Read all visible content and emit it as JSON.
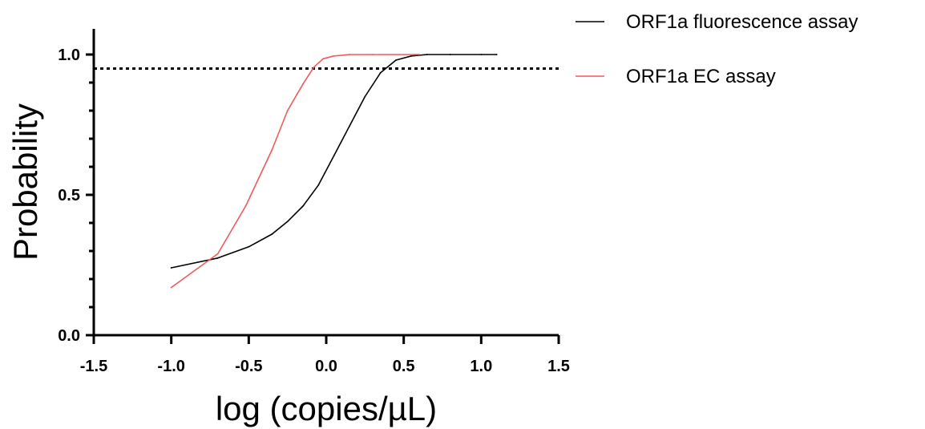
{
  "chart_data": {
    "type": "line",
    "title": "",
    "xlabel": "log (copies/µL)",
    "ylabel": "Probability",
    "xlim": [
      -1.5,
      1.5
    ],
    "ylim": [
      0.0,
      1.0
    ],
    "x_ticks": [
      -1.5,
      -1.0,
      -0.5,
      0.0,
      0.5,
      1.0,
      1.5
    ],
    "x_tick_labels": [
      "-1.5",
      "-1.0",
      "-0.5",
      "0.0",
      "0.5",
      "1.0",
      "1.5"
    ],
    "y_ticks": [
      0.0,
      0.5,
      1.0
    ],
    "y_tick_labels": [
      "0.0",
      "0.5",
      "1.0"
    ],
    "y_minor_ticks": [
      0.1,
      0.2,
      0.3,
      0.4,
      0.6,
      0.7,
      0.8,
      0.9
    ],
    "grid": false,
    "legend_position": "top-right, outside plot",
    "reference_lines": [
      {
        "axis": "y",
        "value": 0.95,
        "style": "dotted",
        "color": "#000000",
        "x_range": [
          -1.5,
          1.5
        ]
      }
    ],
    "series": [
      {
        "name": "ORF1a fluorescence assay",
        "color": "#000000",
        "x": [
          -1.0,
          -0.7,
          -0.5,
          -0.35,
          -0.25,
          -0.15,
          -0.05,
          0.05,
          0.15,
          0.25,
          0.35,
          0.45,
          0.55,
          0.65,
          0.8,
          1.0,
          1.1
        ],
        "y": [
          0.24,
          0.275,
          0.315,
          0.36,
          0.405,
          0.46,
          0.535,
          0.64,
          0.745,
          0.85,
          0.935,
          0.98,
          0.995,
          1.0,
          1.0,
          1.0,
          1.0
        ]
      },
      {
        "name": "ORF1a EC assay",
        "color": "#f05a5a",
        "x": [
          -1.0,
          -0.7,
          -0.52,
          -0.35,
          -0.25,
          -0.15,
          -0.08,
          -0.02,
          0.05,
          0.15,
          0.3,
          0.6
        ],
        "y": [
          0.17,
          0.29,
          0.46,
          0.66,
          0.8,
          0.895,
          0.955,
          0.985,
          0.995,
          1.0,
          1.0,
          1.0
        ]
      }
    ]
  }
}
